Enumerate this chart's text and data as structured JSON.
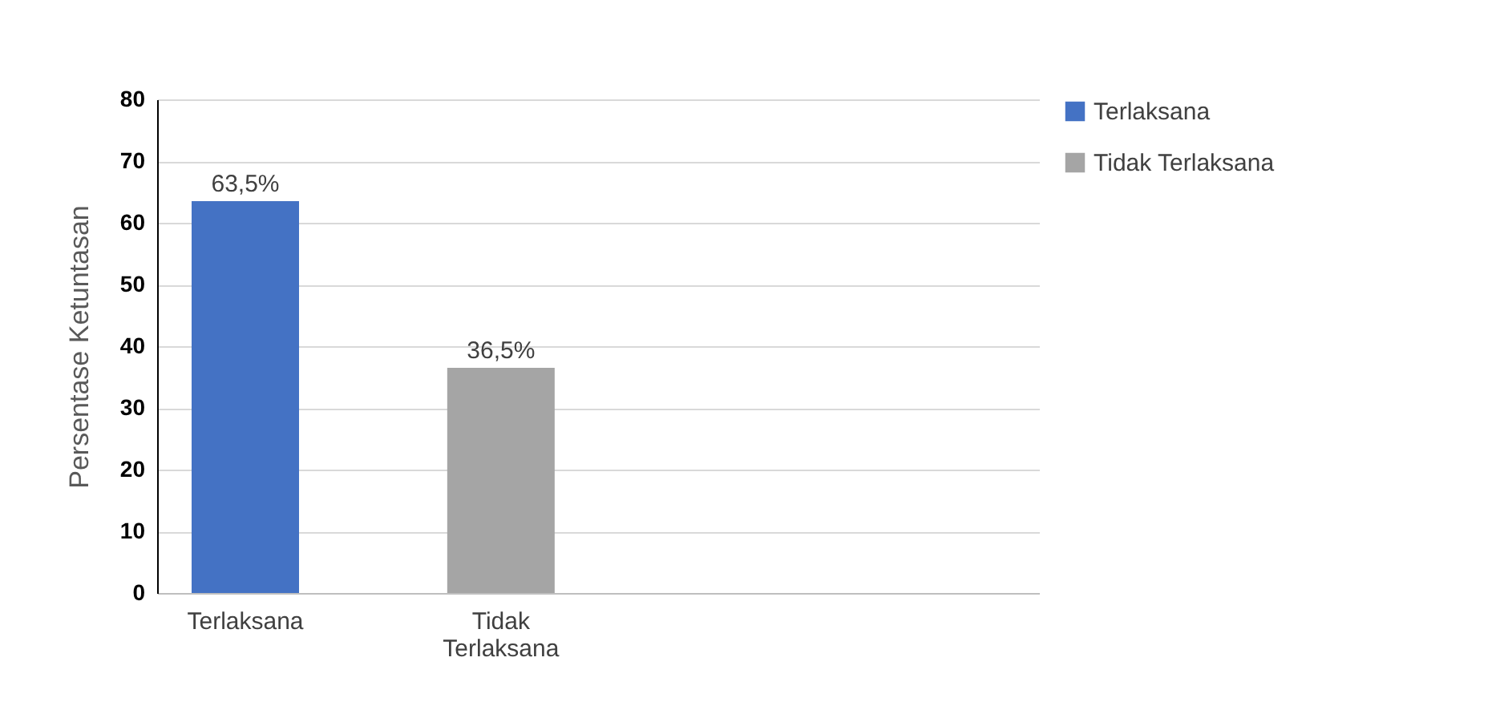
{
  "chart_data": {
    "type": "bar",
    "ylabel": "Persentase Ketuntasan",
    "categories": [
      "Terlaksana",
      "Tidak Terlaksana"
    ],
    "series": [
      {
        "name": "Terlaksana",
        "color": "#4472c4",
        "values": [
          63.5,
          null
        ],
        "value_labels": [
          "63,5%",
          null
        ]
      },
      {
        "name": "Tidak Terlaksana",
        "color": "#a5a5a5",
        "values": [
          null,
          36.5
        ],
        "value_labels": [
          null,
          "36,5%"
        ]
      }
    ],
    "ylim": [
      0,
      80
    ],
    "yticks": [
      0,
      10,
      20,
      30,
      40,
      50,
      60,
      70,
      80
    ],
    "grid": "y",
    "legend": "right"
  }
}
